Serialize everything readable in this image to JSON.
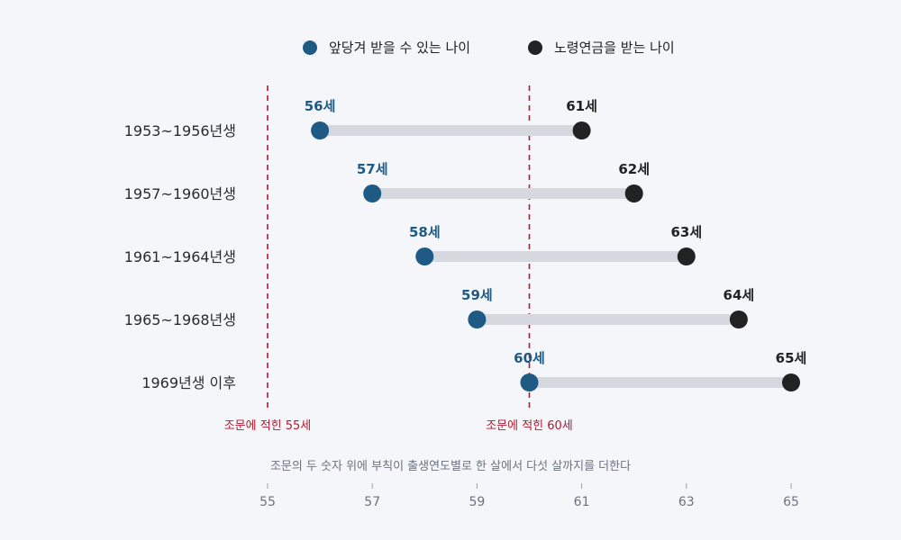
{
  "chart_data": {
    "type": "dumbbell",
    "legend": [
      {
        "label": "앞당겨 받을 수 있는 나이",
        "color": "#1f5a85"
      },
      {
        "label": "노령연금을 받는 나이",
        "color": "#222222"
      }
    ],
    "categories": [
      "1953~1956년생",
      "1957~1960년생",
      "1961~1964년생",
      "1965~1968년생",
      "1969년생 이후"
    ],
    "series": [
      {
        "name": "앞당겨 받을 수 있는 나이",
        "values": [
          56,
          57,
          58,
          59,
          60
        ],
        "labels": [
          "56세",
          "57세",
          "58세",
          "59세",
          "60세"
        ],
        "color": "#1f5a85"
      },
      {
        "name": "노령연금을 받는 나이",
        "values": [
          61,
          62,
          63,
          64,
          65
        ],
        "labels": [
          "61세",
          "62세",
          "63세",
          "64세",
          "65세"
        ],
        "color": "#222222"
      }
    ],
    "reference_lines": [
      {
        "value": 55,
        "label": "조문에 적힌 55세",
        "color": "#b5172f"
      },
      {
        "value": 60,
        "label": "조문에 적힌 60세",
        "color": "#b5172f"
      }
    ],
    "note": "조문의 두 숫자 위에 부칙이 출생연도별로 한 살에서 다섯 살까지를 더한다",
    "x_ticks": [
      55,
      57,
      59,
      61,
      63,
      65
    ],
    "xlim": [
      55,
      65
    ],
    "bar_color": "#d5d9df",
    "grid": false,
    "legend_position": "top-center"
  }
}
